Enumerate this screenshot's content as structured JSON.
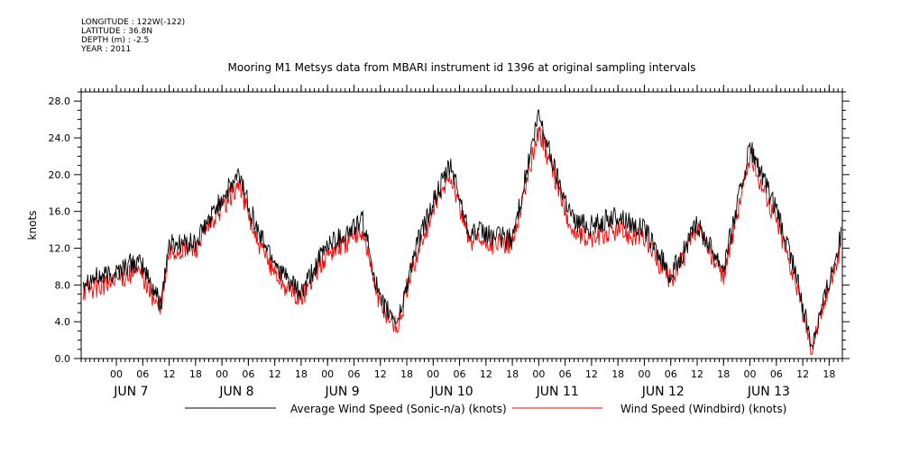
{
  "meta": {
    "longitude": "LONGITUDE : 122W(-122)",
    "latitude": "LATITUDE : 36.8N",
    "depth": "DEPTH (m) : -2.5",
    "year": "YEAR : 2011"
  },
  "colors": {
    "sonic": "#000000",
    "windbird": "#ff0000"
  },
  "chart_data": {
    "type": "line",
    "title": "Mooring M1 Metsys data from MBARI instrument id 1396 at original sampling intervals",
    "xlabel": "",
    "ylabel": "knots",
    "xlim": [
      "2011-06-06T16:00",
      "2011-06-13T21:00"
    ],
    "ylim": [
      0,
      29
    ],
    "yticks": [
      "0.0",
      "4.0",
      "8.0",
      "12.0",
      "16.0",
      "20.0",
      "24.0",
      "28.0"
    ],
    "xticks": [
      "00",
      "06",
      "12",
      "18",
      "00",
      "06",
      "12",
      "18",
      "00",
      "06",
      "12",
      "18",
      "00",
      "06",
      "12",
      "18",
      "00",
      "06",
      "12",
      "18",
      "00",
      "06",
      "12",
      "18",
      "00",
      "06",
      "12",
      "18",
      "00",
      "06",
      "12",
      "18"
    ],
    "day_labels": [
      "JUN 7",
      "JUN 8",
      "JUN 9",
      "JUN 10",
      "JUN 11",
      "JUN 12",
      "JUN 13"
    ],
    "grid": false,
    "legend_position": "bottom",
    "x": [
      "2011-06-06T16:00",
      "2011-06-06T22:00",
      "2011-06-07T04:00",
      "2011-06-07T06:00",
      "2011-06-07T10:00",
      "2011-06-07T12:00",
      "2011-06-07T18:00",
      "2011-06-08T00:00",
      "2011-06-08T04:00",
      "2011-06-08T08:00",
      "2011-06-08T14:00",
      "2011-06-08T18:00",
      "2011-06-09T00:00",
      "2011-06-09T04:00",
      "2011-06-09T08:00",
      "2011-06-09T12:00",
      "2011-06-09T16:00",
      "2011-06-09T20:00",
      "2011-06-10T00:00",
      "2011-06-10T04:00",
      "2011-06-10T08:00",
      "2011-06-10T12:00",
      "2011-06-10T18:00",
      "2011-06-11T00:00",
      "2011-06-11T04:00",
      "2011-06-11T08:00",
      "2011-06-11T12:00",
      "2011-06-11T18:00",
      "2011-06-12T00:00",
      "2011-06-12T06:00",
      "2011-06-12T12:00",
      "2011-06-12T18:00",
      "2011-06-13T00:00",
      "2011-06-13T06:00",
      "2011-06-13T10:00",
      "2011-06-13T14:00",
      "2011-06-13T18:00",
      "2011-06-13T21:00"
    ],
    "series": [
      {
        "name": "Average Wind Speed (Sonic-n/a) (knots)",
        "color": "#000000",
        "values": [
          8.5,
          9.0,
          10.5,
          10.0,
          6.0,
          12.5,
          12.5,
          17.5,
          20.0,
          14.0,
          9.0,
          7.0,
          12.5,
          13.5,
          15.0,
          6.0,
          4.0,
          12.0,
          17.0,
          21.0,
          14.0,
          13.5,
          13.0,
          26.5,
          20.0,
          15.0,
          14.5,
          15.5,
          14.0,
          9.0,
          14.5,
          10.0,
          23.0,
          16.0,
          10.0,
          1.5,
          8.5,
          14.0
        ]
      },
      {
        "name": "Wind Speed (Windbird) (knots)",
        "color": "#ff0000",
        "values": [
          7.5,
          8.0,
          9.5,
          9.0,
          5.0,
          11.5,
          12.0,
          16.5,
          19.0,
          12.5,
          8.0,
          6.5,
          11.5,
          12.5,
          14.0,
          5.5,
          3.5,
          11.0,
          16.0,
          20.0,
          13.0,
          12.5,
          12.5,
          25.0,
          19.0,
          13.5,
          13.0,
          14.0,
          13.0,
          8.5,
          14.0,
          9.0,
          22.0,
          15.0,
          9.0,
          1.2,
          8.0,
          12.5
        ]
      }
    ]
  }
}
